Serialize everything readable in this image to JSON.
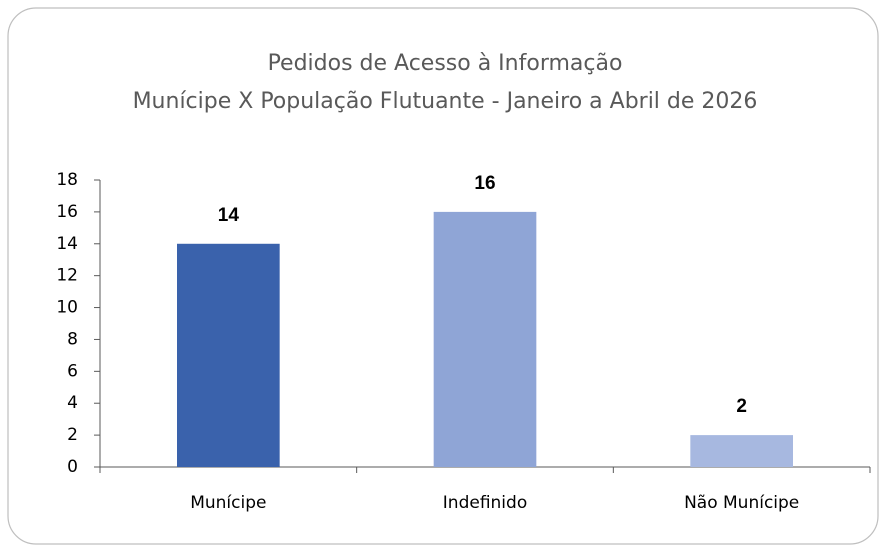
{
  "chart_data": {
    "type": "bar",
    "title": "Pedidos de Acesso à Informação",
    "subtitle": "Munícipe X População Flutuante - Janeiro a Abril de 2026",
    "categories": [
      "Munícipe",
      "Indefinido",
      "Não Munícipe"
    ],
    "values": [
      14,
      16,
      2
    ],
    "colors": [
      "#3a62ac",
      "#8fa5d6",
      "#a7b8e0"
    ],
    "ylim": [
      0,
      18
    ],
    "yticks": [
      0,
      2,
      4,
      6,
      8,
      10,
      12,
      14,
      16,
      18
    ],
    "grid": false
  }
}
